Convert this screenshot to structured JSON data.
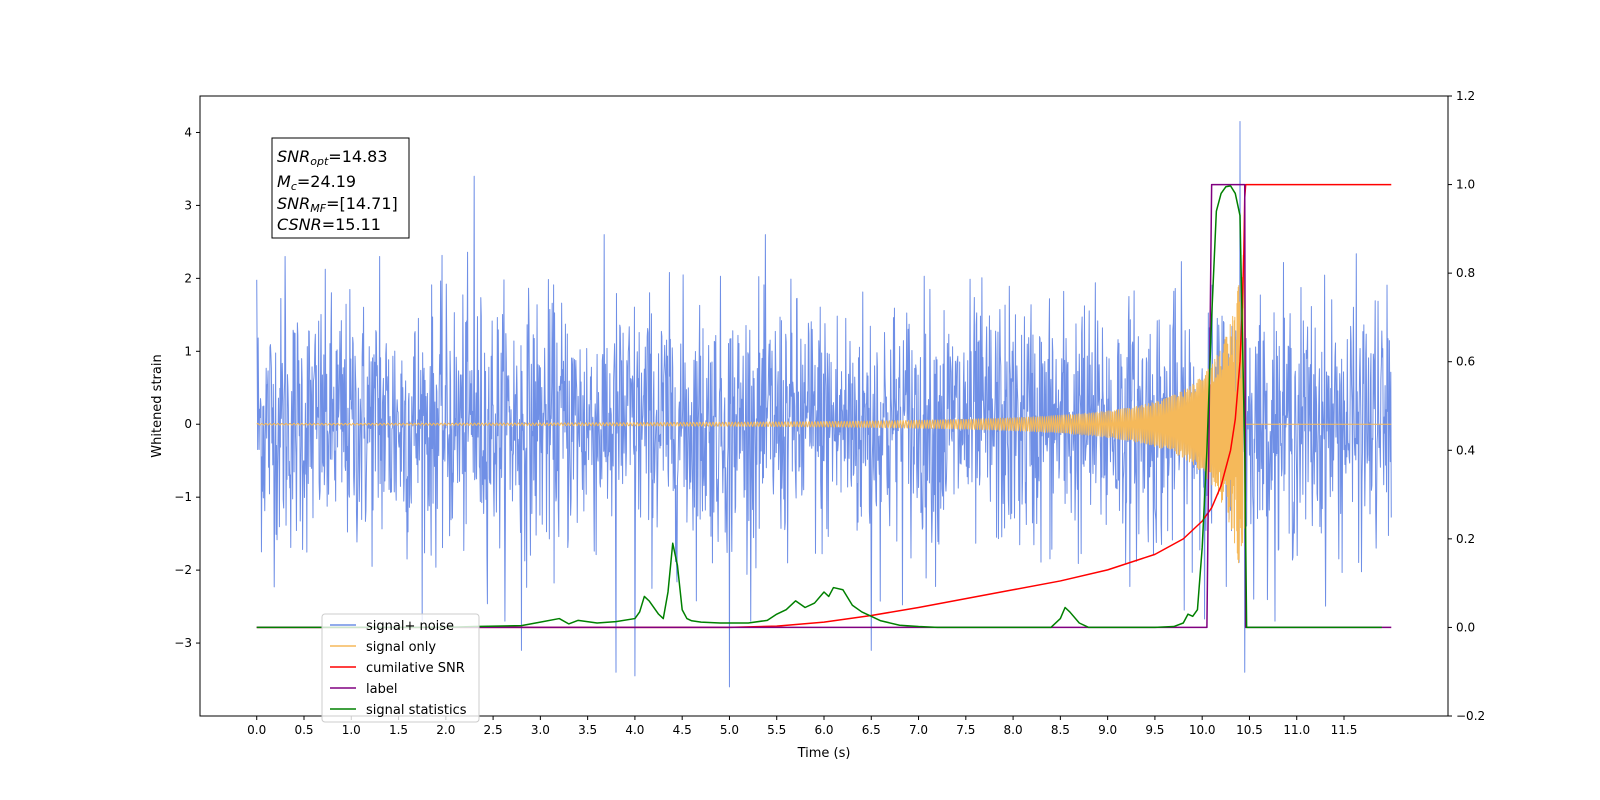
{
  "chart_data": {
    "type": "line",
    "xlabel": "Time (s)",
    "ylabel": "Whitened strain",
    "xlim": [
      -0.6,
      12.6
    ],
    "ylim": [
      -4.0,
      4.5
    ],
    "y2lim": [
      -0.2,
      1.2
    ],
    "x_ticks": [
      "0.0",
      "0.5",
      "1.0",
      "1.5",
      "2.0",
      "2.5",
      "3.0",
      "3.5",
      "4.0",
      "4.5",
      "5.0",
      "5.5",
      "6.0",
      "6.5",
      "7.0",
      "7.5",
      "8.0",
      "8.5",
      "9.0",
      "9.5",
      "10.0",
      "10.5",
      "11.0",
      "11.5"
    ],
    "y_ticks": [
      "−3",
      "−2",
      "−1",
      "0",
      "1",
      "2",
      "3",
      "4"
    ],
    "y2_ticks": [
      "−0.2",
      "0.0",
      "0.2",
      "0.4",
      "0.6",
      "0.8",
      "1.0",
      "1.2"
    ],
    "colors": {
      "noise": "#6f8fe6",
      "signal": "#f5b95a",
      "csnr": "#ff0000",
      "label": "#800080",
      "stats": "#008000"
    },
    "annotation": {
      "l1_main": "SNR",
      "l1_sub": "opt",
      "l1_val": "=14.83",
      "l2_main": "M",
      "l2_sub": "c",
      "l2_val": "=24.19",
      "l3_main": "SNR",
      "l3_sub": "MF",
      "l3_val": "=[14.71]",
      "l4_main": "CSNR",
      "l4_val": "=15.11"
    },
    "legend": {
      "noise": "signal+ noise",
      "signal": "signal only",
      "csnr": "cumilative SNR",
      "label": "label",
      "stats": "signal statistics"
    },
    "series": [
      {
        "name": "signal+ noise",
        "axis": "left",
        "kind": "noise",
        "x_range": [
          0.0,
          12.0
        ],
        "sigma": 1.0,
        "spikes": [
          [
            0.0,
            1.98
          ],
          [
            0.3,
            2.3
          ],
          [
            1.3,
            2.3
          ],
          [
            2.3,
            3.4
          ],
          [
            2.8,
            -3.1
          ],
          [
            3.8,
            -3.4
          ],
          [
            4.0,
            -3.45
          ],
          [
            5.0,
            -3.6
          ],
          [
            6.5,
            -3.1
          ],
          [
            10.4,
            4.15
          ],
          [
            10.45,
            -3.4
          ]
        ]
      },
      {
        "name": "signal only",
        "axis": "left",
        "kind": "chirp",
        "t_c": 10.45,
        "amp_at_end": 2.5,
        "amp_tau": 0.35,
        "y_base": 0.0
      },
      {
        "name": "cumilative SNR",
        "axis": "right",
        "x": [
          0.0,
          5.0,
          5.5,
          6.0,
          6.5,
          7.0,
          7.5,
          8.0,
          8.5,
          9.0,
          9.5,
          9.8,
          10.0,
          10.1,
          10.2,
          10.3,
          10.35,
          10.4,
          10.42,
          10.44,
          10.45,
          10.46,
          12.0
        ],
        "y": [
          0.0,
          0.0,
          0.003,
          0.012,
          0.027,
          0.045,
          0.065,
          0.085,
          0.105,
          0.13,
          0.165,
          0.2,
          0.24,
          0.27,
          0.32,
          0.4,
          0.47,
          0.6,
          0.7,
          0.84,
          0.97,
          1.0,
          1.0
        ]
      },
      {
        "name": "label",
        "axis": "right",
        "x": [
          0.0,
          10.05,
          10.1,
          10.45,
          10.46,
          12.0
        ],
        "y": [
          0.0,
          0.0,
          1.0,
          1.0,
          0.0,
          0.0
        ]
      },
      {
        "name": "signal statistics",
        "axis": "right",
        "x": [
          0.0,
          2.0,
          2.3,
          2.8,
          3.0,
          3.2,
          3.3,
          3.4,
          3.6,
          3.8,
          4.0,
          4.05,
          4.1,
          4.15,
          4.25,
          4.3,
          4.35,
          4.4,
          4.45,
          4.5,
          4.55,
          4.6,
          4.7,
          4.9,
          5.0,
          5.2,
          5.4,
          5.5,
          5.6,
          5.7,
          5.8,
          5.9,
          6.0,
          6.05,
          6.1,
          6.2,
          6.3,
          6.4,
          6.5,
          6.6,
          6.8,
          7.0,
          7.2,
          8.0,
          8.4,
          8.5,
          8.55,
          8.6,
          8.7,
          8.8,
          9.5,
          9.7,
          9.8,
          9.85,
          9.9,
          9.95,
          10.0,
          10.05,
          10.1,
          10.15,
          10.2,
          10.25,
          10.3,
          10.35,
          10.4,
          10.45,
          10.47,
          10.5,
          11.0,
          11.9
        ],
        "y": [
          0.0,
          0.0,
          0.002,
          0.004,
          0.012,
          0.02,
          0.008,
          0.016,
          0.01,
          0.013,
          0.02,
          0.035,
          0.07,
          0.06,
          0.03,
          0.02,
          0.08,
          0.19,
          0.14,
          0.04,
          0.02,
          0.015,
          0.012,
          0.01,
          0.01,
          0.01,
          0.016,
          0.03,
          0.04,
          0.06,
          0.045,
          0.055,
          0.08,
          0.07,
          0.09,
          0.085,
          0.05,
          0.035,
          0.025,
          0.015,
          0.005,
          0.002,
          0.0,
          0.0,
          0.0,
          0.02,
          0.045,
          0.035,
          0.01,
          0.0,
          0.0,
          0.002,
          0.01,
          0.03,
          0.025,
          0.04,
          0.18,
          0.4,
          0.7,
          0.94,
          0.98,
          0.995,
          0.997,
          0.98,
          0.93,
          0.4,
          0.0,
          0.0,
          0.0,
          0.0
        ]
      }
    ]
  }
}
